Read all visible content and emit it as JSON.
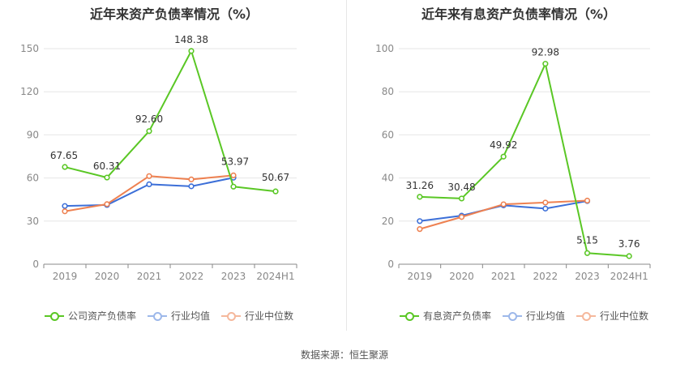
{
  "charts": {
    "left": {
      "title": "近年来资产负债率情况（%）",
      "legend": [
        "公司资产负债率",
        "行业均值",
        "行业中位数"
      ]
    },
    "right": {
      "title": "近年来有息资产负债率情况（%）",
      "legend": [
        "有息资产负债率",
        "行业均值",
        "行业中位数"
      ]
    }
  },
  "source": "数据来源：恒生聚源",
  "colors": {
    "company": "#5ac725",
    "mean": "#3c6fd8",
    "median": "#ee8151",
    "grid": "#e6e6e6",
    "axis": "#888888"
  },
  "chart_data": [
    {
      "type": "line",
      "title": "近年来资产负债率情况（%）",
      "categories": [
        "2019",
        "2020",
        "2021",
        "2022",
        "2023",
        "2024H1"
      ],
      "ylim": [
        0,
        150
      ],
      "yticks": [
        0,
        30,
        60,
        90,
        120,
        150
      ],
      "grid": true,
      "legend_position": "bottom",
      "series": [
        {
          "name": "公司资产负债率",
          "values": [
            67.65,
            60.31,
            92.6,
            148.38,
            53.97,
            50.67
          ],
          "labels": [
            "67.65",
            "60.31",
            "92.60",
            "148.38",
            "53.97",
            "50.67"
          ]
        },
        {
          "name": "行业均值",
          "values": [
            40.5,
            41.2,
            55.6,
            54.2,
            60.2,
            null
          ]
        },
        {
          "name": "行业中位数",
          "values": [
            36.8,
            41.8,
            61.3,
            59.0,
            61.8,
            null
          ]
        }
      ]
    },
    {
      "type": "line",
      "title": "近年来有息资产负债率情况（%）",
      "categories": [
        "2019",
        "2020",
        "2021",
        "2022",
        "2023",
        "2024H1"
      ],
      "ylim": [
        0,
        100
      ],
      "yticks": [
        0,
        20,
        40,
        60,
        80,
        100
      ],
      "grid": true,
      "legend_position": "bottom",
      "series": [
        {
          "name": "有息资产负债率",
          "values": [
            31.26,
            30.48,
            49.92,
            92.98,
            5.15,
            3.76
          ],
          "labels": [
            "31.26",
            "30.48",
            "49.92",
            "92.98",
            "5.15",
            "3.76"
          ]
        },
        {
          "name": "行业均值",
          "values": [
            20.0,
            22.5,
            27.3,
            25.8,
            29.3,
            null
          ]
        },
        {
          "name": "行业中位数",
          "values": [
            16.3,
            21.9,
            27.8,
            28.6,
            29.5,
            null
          ]
        }
      ]
    }
  ]
}
